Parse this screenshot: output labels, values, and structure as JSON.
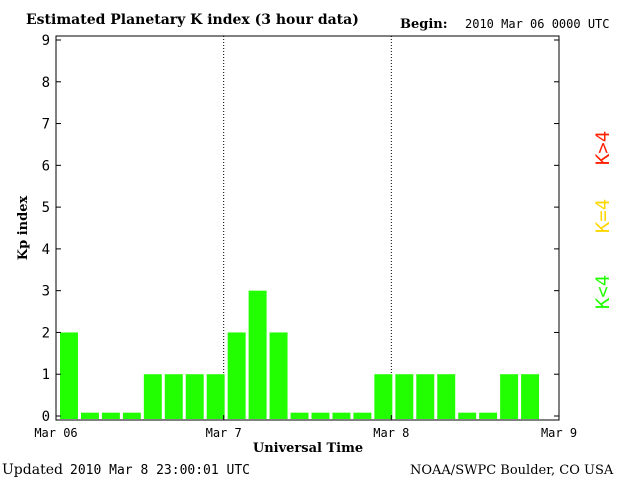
{
  "header": {
    "title": "Estimated Planetary K index (3 hour data)",
    "begin_label": "Begin:",
    "begin_value": "2010 Mar 06 0000 UTC"
  },
  "footer": {
    "updated_label": "Updated",
    "updated_value": "2010 Mar  8 23:00:01 UTC",
    "credit": "NOAA/SWPC Boulder, CO USA"
  },
  "legend": [
    {
      "text": "K>4",
      "color": "#ff2000"
    },
    {
      "text": "K=4",
      "color": "#ffd700"
    },
    {
      "text": "K<4",
      "color": "#22ff00"
    }
  ],
  "chart_data": {
    "type": "bar",
    "title": "Estimated Planetary K index (3 hour data)",
    "xlabel": "Universal Time",
    "ylabel": "Kp index",
    "ylim": [
      0,
      9
    ],
    "yticks": [
      "0",
      "1",
      "2",
      "3",
      "4",
      "5",
      "6",
      "7",
      "8",
      "9"
    ],
    "xticks": [
      "Mar 06",
      "Mar 7",
      "Mar 8",
      "Mar 9"
    ],
    "day_dividers": [
      "Mar 7",
      "Mar 8"
    ],
    "bar_color": "#22ff00",
    "zero_value_stub": 0.08,
    "values": [
      2,
      0,
      0,
      0,
      1,
      1,
      1,
      1,
      2,
      3,
      2,
      0,
      0,
      0,
      0,
      1,
      1,
      1,
      1,
      0,
      0,
      1,
      1
    ]
  }
}
